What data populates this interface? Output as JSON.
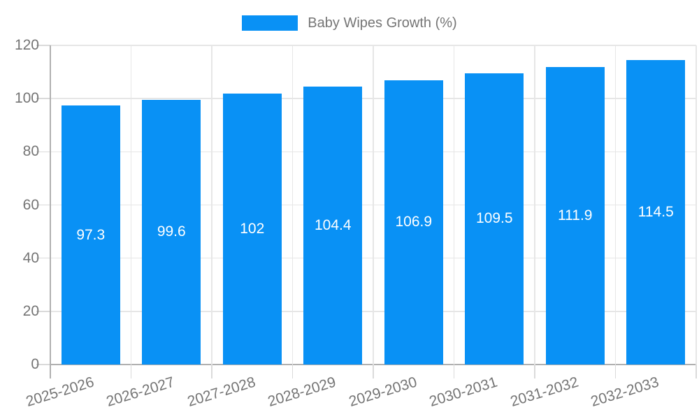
{
  "legend": {
    "label": "Baby Wipes Growth (%)"
  },
  "colors": {
    "bar": "#0991F5",
    "axis_text": "#757575",
    "value_label_text": "#FFFFFF",
    "gridline": "#E6E6E6",
    "axis_line": "#B0B0B0",
    "tick": "#DADADA",
    "background": "#FFFFFF"
  },
  "chart_data": {
    "type": "bar",
    "title": "Baby Wipes Growth (%)",
    "categories": [
      "2025-2026",
      "2026-2027",
      "2027-2028",
      "2028-2029",
      "2029-2030",
      "2030-2031",
      "2031-2032",
      "2032-2033"
    ],
    "values": [
      97.3,
      99.6,
      102,
      104.4,
      106.9,
      109.5,
      111.9,
      114.5
    ],
    "value_labels": [
      "97.3",
      "99.6",
      "102",
      "104.4",
      "106.9",
      "109.5",
      "111.9",
      "114.5"
    ],
    "xlabel": "",
    "ylabel": "",
    "ylim": [
      0,
      120
    ],
    "yticks": [
      0,
      20,
      40,
      60,
      80,
      100,
      120
    ],
    "grid": true,
    "legend_position": "top",
    "value_labels_inside_bars": true
  }
}
